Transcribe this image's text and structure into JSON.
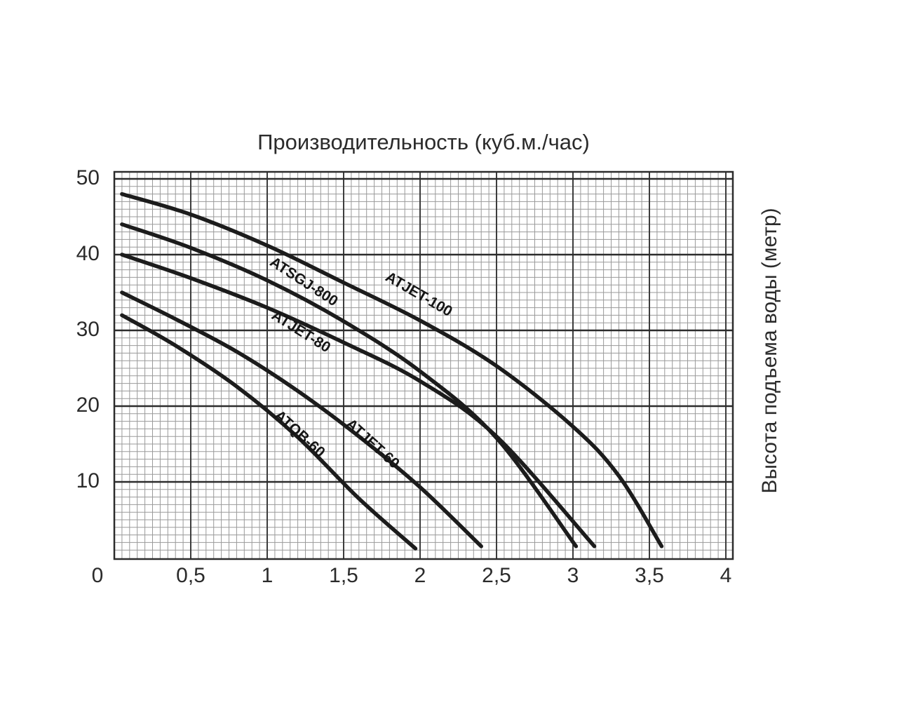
{
  "chart": {
    "title": "Производительность (куб.м./час)",
    "y_axis_label_right": "Высота подъема воды (метр)"
  },
  "chart_data": {
    "type": "line",
    "title": "Производительность (куб.м./час)",
    "xlabel": "Производительность (куб.м./час)",
    "ylabel": "Высота подъема воды (метр)",
    "xlim": [
      0,
      4.05
    ],
    "ylim": [
      0,
      51
    ],
    "x_tick_values": [
      0,
      0.5,
      1,
      1.5,
      2,
      2.5,
      3,
      3.5,
      4
    ],
    "x_tick_labels": [
      "0",
      "0,5",
      "1",
      "1,5",
      "2",
      "2,5",
      "3",
      "3,5",
      "4"
    ],
    "y_tick_values": [
      10,
      20,
      30,
      40,
      50
    ],
    "y_tick_labels": [
      "10",
      "20",
      "30",
      "40",
      "50"
    ],
    "grid": {
      "on": true,
      "minor_x_step": 0.05,
      "minor_y_step": 1,
      "major_x_step": 0.5,
      "major_y_step": 10
    },
    "legend_position": "labels-on-curves",
    "line_color": "#1c1c1c",
    "series": [
      {
        "name": "ATJET-100",
        "points": [
          [
            0.05,
            48
          ],
          [
            0.5,
            45.3
          ],
          [
            1,
            41.2
          ],
          [
            1.5,
            36.3
          ],
          [
            2,
            31.3
          ],
          [
            2.5,
            25.3
          ],
          [
            3,
            17.3
          ],
          [
            3.3,
            10.8
          ],
          [
            3.58,
            1.5
          ]
        ],
        "label": {
          "x": 1.99,
          "y": 34.7,
          "rot": 30
        }
      },
      {
        "name": "ATSGJ-800",
        "points": [
          [
            0.05,
            44
          ],
          [
            0.5,
            40.9
          ],
          [
            1,
            36.6
          ],
          [
            1.5,
            31.2
          ],
          [
            2,
            24.6
          ],
          [
            2.5,
            15.8
          ],
          [
            3.02,
            1.5
          ]
        ],
        "label": {
          "x": 1.24,
          "y": 36.4,
          "rot": 33
        }
      },
      {
        "name": "ATJET-80",
        "points": [
          [
            0.05,
            40
          ],
          [
            0.5,
            36.9
          ],
          [
            1,
            33
          ],
          [
            1.5,
            28.4
          ],
          [
            2,
            23.3
          ],
          [
            2.5,
            16
          ],
          [
            3.14,
            1.5
          ]
        ],
        "label": {
          "x": 1.22,
          "y": 29.8,
          "rot": 32
        }
      },
      {
        "name": "ATJET-60",
        "points": [
          [
            0.05,
            35
          ],
          [
            0.4,
            31.5
          ],
          [
            0.8,
            27.2
          ],
          [
            1.2,
            22
          ],
          [
            1.6,
            16
          ],
          [
            2,
            9.3
          ],
          [
            2.4,
            1.5
          ]
        ],
        "label": {
          "x": 1.69,
          "y": 15.0,
          "rot": 42
        }
      },
      {
        "name": "ATQB-60",
        "points": [
          [
            0.05,
            32
          ],
          [
            0.4,
            28
          ],
          [
            0.8,
            22.6
          ],
          [
            1.2,
            15.9
          ],
          [
            1.6,
            7.8
          ],
          [
            1.97,
            1.2
          ]
        ],
        "label": {
          "x": 1.21,
          "y": 16.3,
          "rot": 42
        }
      }
    ]
  }
}
